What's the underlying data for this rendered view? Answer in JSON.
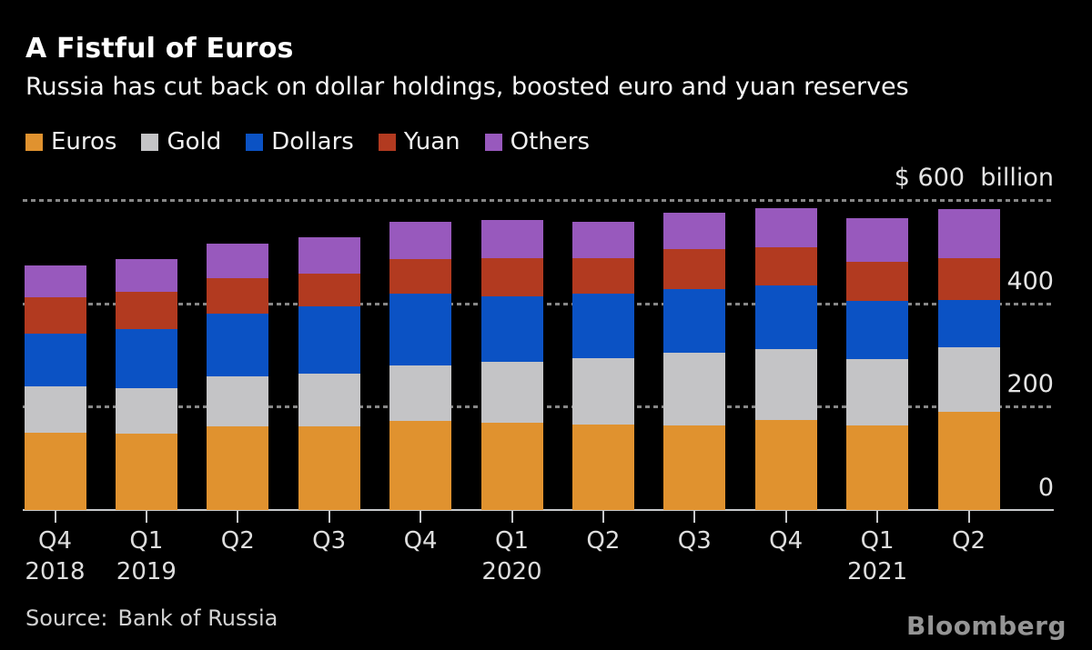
{
  "header": {
    "title": "A Fistful of Euros",
    "subtitle": "Russia has cut back on dollar holdings, boosted euro and yuan reserves"
  },
  "footer": {
    "source_label": "Source:",
    "source_value": "Bank of Russia",
    "brand": "Bloomberg"
  },
  "colors": {
    "background": "#000000",
    "title_text": "#ffffff",
    "axis_text": "#e4e4e4",
    "gridline": "#878787",
    "baseline": "#c6c8ca",
    "brand_text": "#959595"
  },
  "chart_data": {
    "type": "bar",
    "subtype": "stacked",
    "unit": "USD billion",
    "title": "A Fistful of Euros",
    "xlabel": "",
    "ylabel": "$ billion",
    "ylim": [
      0,
      600
    ],
    "grid": "dashed-horizontal",
    "legend_position": "top",
    "categories": [
      {
        "quarter": "Q4",
        "year": "2018"
      },
      {
        "quarter": "Q1",
        "year": "2019"
      },
      {
        "quarter": "Q2",
        "year": ""
      },
      {
        "quarter": "Q3",
        "year": ""
      },
      {
        "quarter": "Q4",
        "year": ""
      },
      {
        "quarter": "Q1",
        "year": "2020"
      },
      {
        "quarter": "Q2",
        "year": ""
      },
      {
        "quarter": "Q3",
        "year": ""
      },
      {
        "quarter": "Q4",
        "year": ""
      },
      {
        "quarter": "Q1",
        "year": "2021"
      },
      {
        "quarter": "Q2",
        "year": ""
      }
    ],
    "series": [
      {
        "name": "Euros",
        "color": "#e0922f",
        "values": [
          150,
          148,
          162,
          162,
          172,
          169,
          165,
          164,
          174,
          164,
          190
        ]
      },
      {
        "name": "Gold",
        "color": "#c4c4c6",
        "values": [
          90,
          88,
          97,
          102,
          107,
          118,
          128,
          141,
          137,
          128,
          125
        ]
      },
      {
        "name": "Dollars",
        "color": "#0b52c4",
        "values": [
          102,
          114,
          121,
          130,
          139,
          127,
          125,
          123,
          123,
          113,
          91
        ]
      },
      {
        "name": "Yuan",
        "color": "#b23a20",
        "values": [
          70,
          72,
          69,
          63,
          67,
          74,
          70,
          77,
          74,
          76,
          81
        ]
      },
      {
        "name": "Others",
        "color": "#9859bd",
        "values": [
          62,
          63,
          67,
          70,
          72,
          74,
          70,
          70,
          77,
          84,
          95
        ]
      }
    ],
    "y_ticks": [
      {
        "value": 600,
        "label": "$ 600  billion"
      },
      {
        "value": 400,
        "label": "400"
      },
      {
        "value": 200,
        "label": "200"
      },
      {
        "value": 0,
        "label": "0"
      }
    ]
  }
}
